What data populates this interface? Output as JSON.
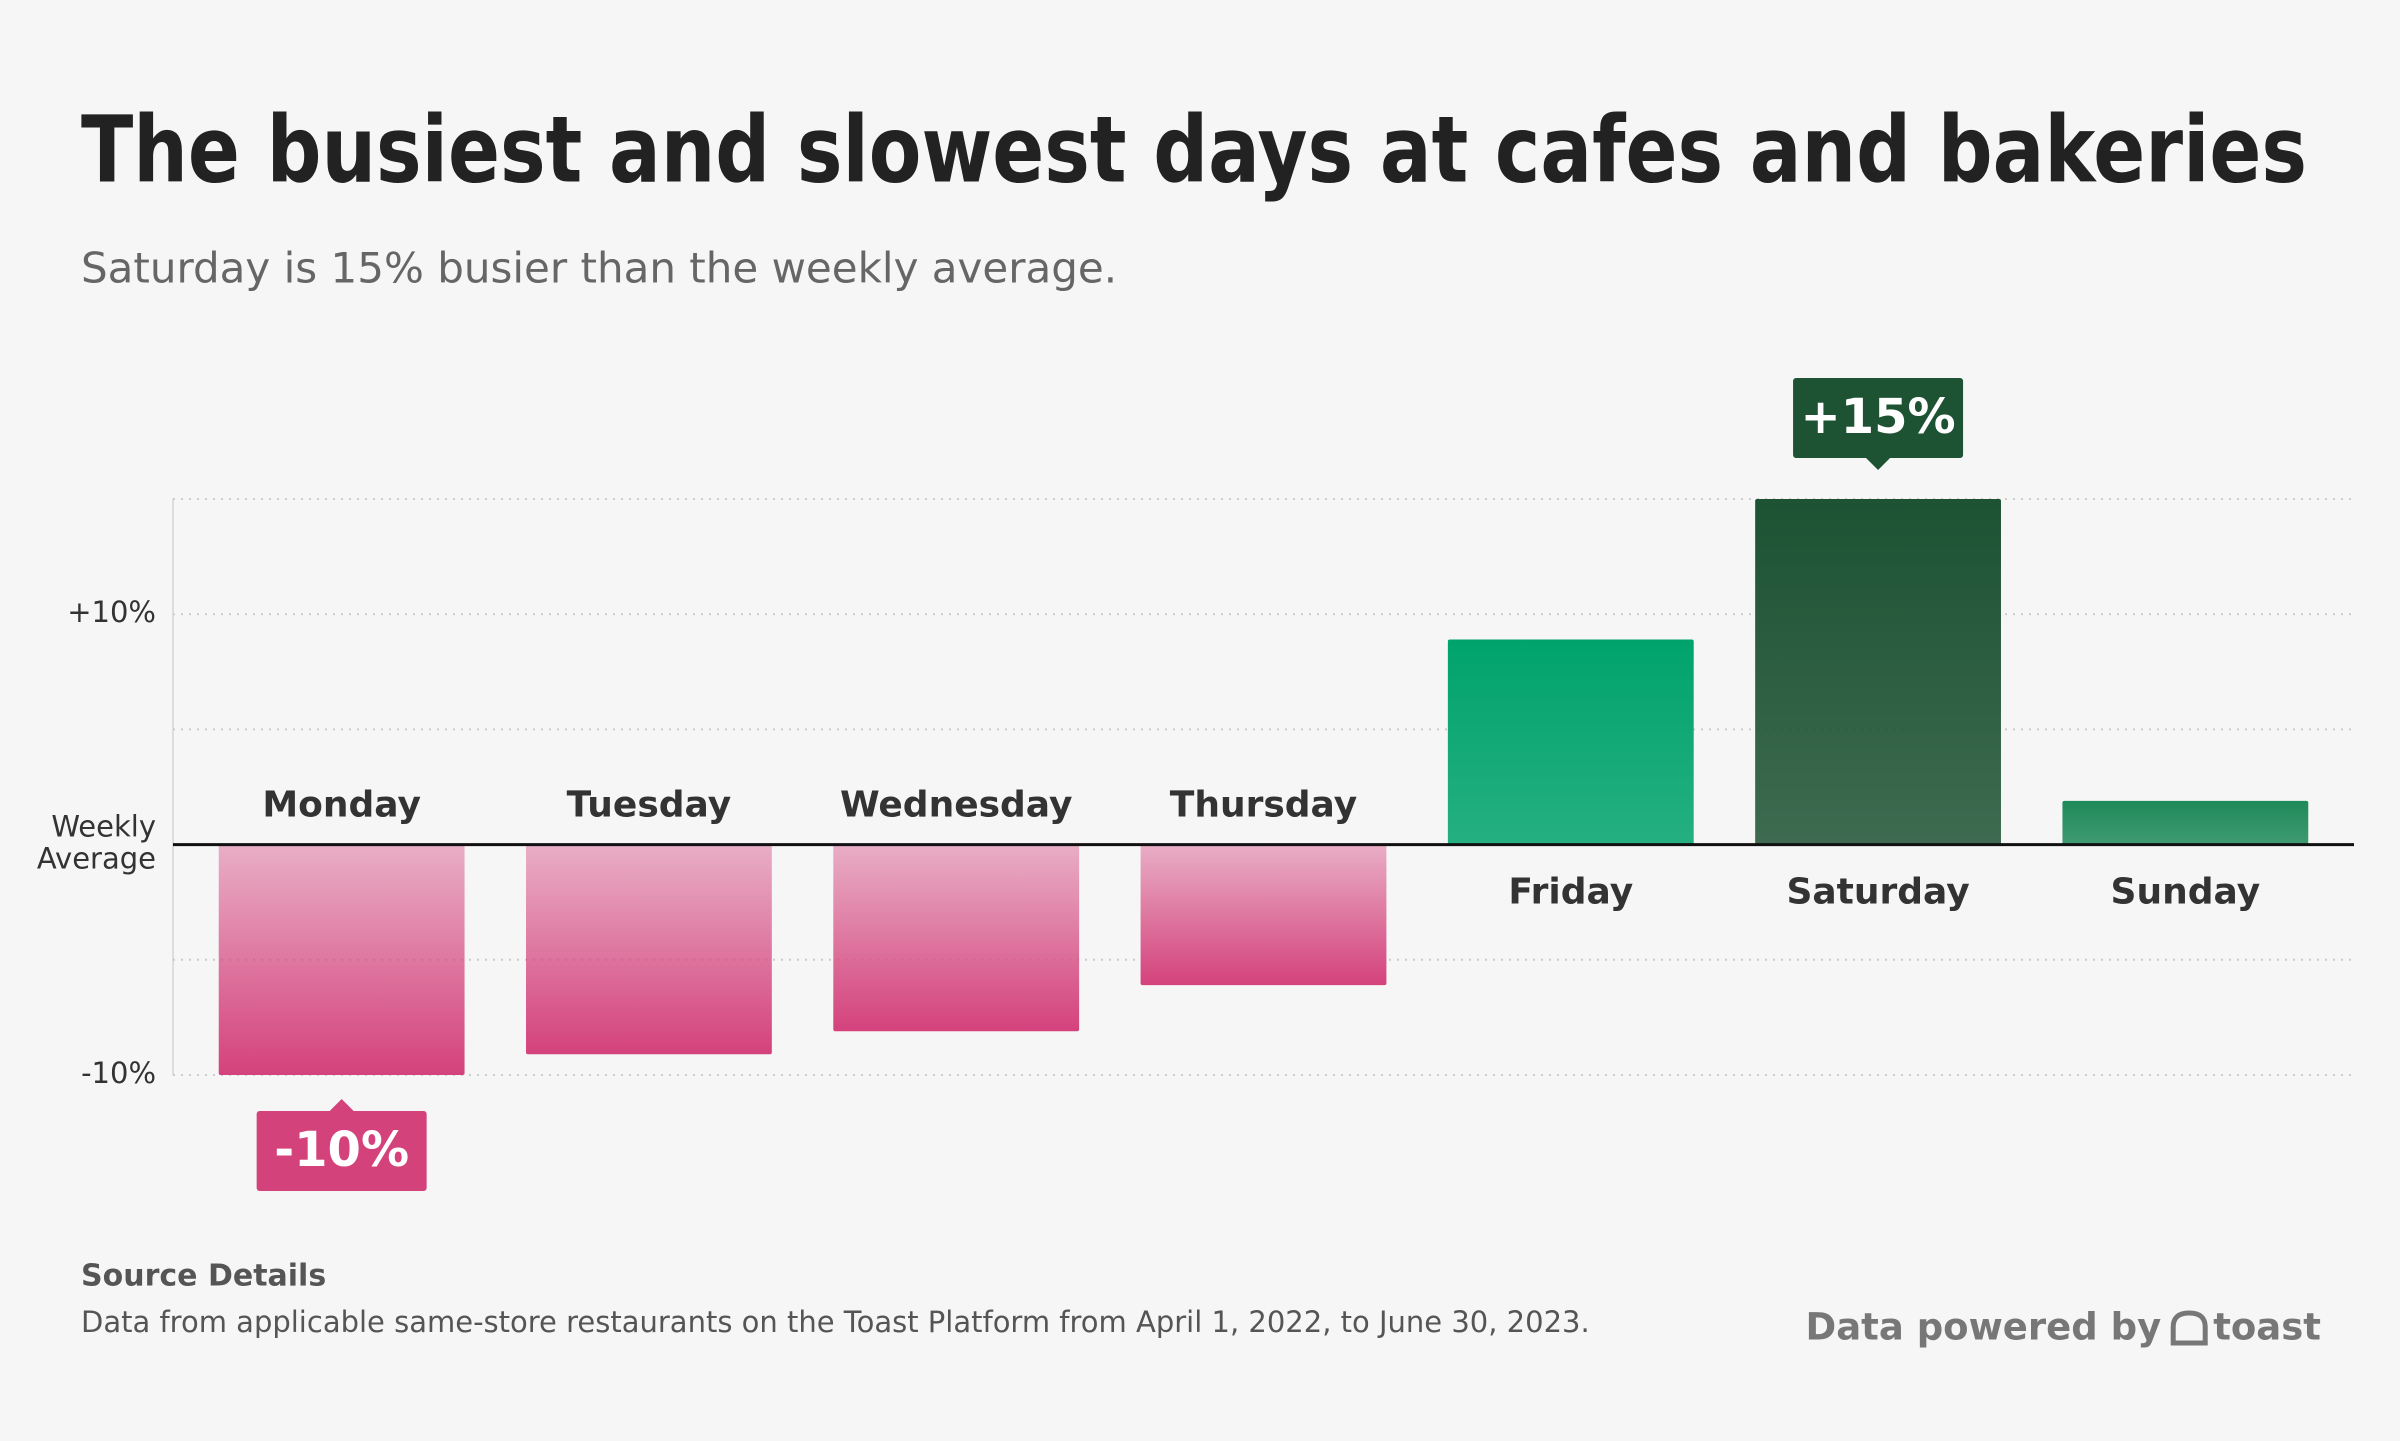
{
  "chart_data": {
    "type": "bar",
    "title": "The busiest and slowest days at cafes and bakeries",
    "subtitle": "Saturday is 15% busier than the weekly average.",
    "categories": [
      "Monday",
      "Tuesday",
      "Wednesday",
      "Thursday",
      "Friday",
      "Saturday",
      "Sunday"
    ],
    "values": [
      -10,
      -9.1,
      -8.1,
      -6.1,
      8.9,
      15,
      1.9
    ],
    "value_labels": [
      "-10%",
      null,
      null,
      null,
      null,
      "+15%",
      null
    ],
    "colors": [
      "#d4427c",
      "#d4427c",
      "#d4427c",
      "#d4427c",
      "#00a36c",
      "#1d5233",
      "#1e8a5a"
    ],
    "ylim": [
      -10,
      15
    ],
    "yticks": [
      {
        "value": -10,
        "label": "-10%"
      },
      {
        "value": -5,
        "label": null
      },
      {
        "value": 0,
        "label": "Weekly Average"
      },
      {
        "value": 5,
        "label": null
      },
      {
        "value": 10,
        "label": "+10%"
      },
      {
        "value": 15,
        "label": null
      }
    ],
    "grid": true,
    "source_title": "Source Details",
    "source_note": "Data from applicable same-store restaurants on the Toast Platform from April 1, 2022, to June 30, 2023.",
    "credit": "Data powered by",
    "brand": "toast"
  }
}
